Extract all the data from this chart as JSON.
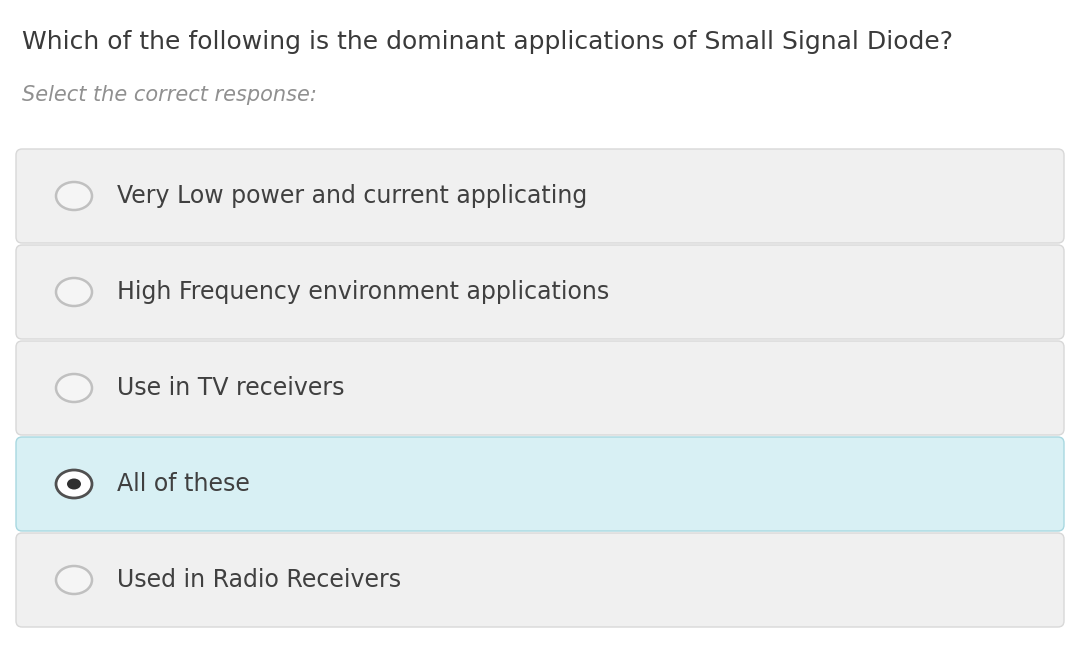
{
  "question": "Which of the following is the dominant applications of Small Signal Diode?",
  "subtitle": "Select the correct response:",
  "options": [
    "Very Low power and current applicating",
    "High Frequency environment applications",
    "Use in TV receivers",
    "All of these",
    "Used in Radio Receivers"
  ],
  "selected_index": 3,
  "bg_color": "#ffffff",
  "option_bg_default": "#f0f0f0",
  "option_bg_selected": "#d8f0f4",
  "option_border_default": "#d8d8d8",
  "option_border_selected": "#a8d8e0",
  "question_color": "#3a3a3a",
  "subtitle_color": "#909090",
  "option_text_color": "#404040",
  "radio_border_unselected": "#c0c0c0",
  "radio_fill_unselected": "#f5f5f5",
  "radio_border_selected": "#505050",
  "radio_fill_selected": "#ffffff",
  "radio_dot_color": "#303030",
  "question_fontsize": 18,
  "subtitle_fontsize": 15,
  "option_fontsize": 17,
  "fig_width": 10.8,
  "fig_height": 6.49,
  "dpi": 100
}
